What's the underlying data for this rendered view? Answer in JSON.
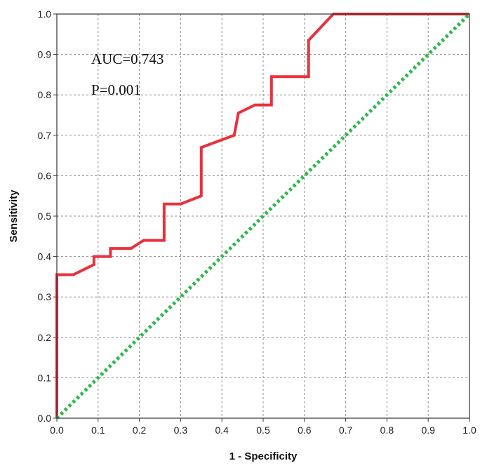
{
  "chart_data": {
    "type": "line",
    "title": "",
    "xlabel": "1 - Specificity",
    "ylabel": "Sensitivity",
    "xlim": [
      0.0,
      1.0
    ],
    "ylim": [
      0.0,
      1.0
    ],
    "grid": true,
    "x_ticks": [
      "0.0",
      "0.1",
      "0.2",
      "0.3",
      "0.4",
      "0.5",
      "0.6",
      "0.7",
      "0.8",
      "0.9",
      "1.0"
    ],
    "y_ticks": [
      "0.0",
      "0.1",
      "0.2",
      "0.3",
      "0.4",
      "0.5",
      "0.6",
      "0.7",
      "0.8",
      "0.9",
      "1.0"
    ],
    "annotations": [
      "AUC=0.743",
      "P=0.001"
    ],
    "series": [
      {
        "color": "#e8323c",
        "style": "solid",
        "x": [
          0.0,
          0.0,
          0.04,
          0.08,
          0.09,
          0.09,
          0.13,
          0.13,
          0.18,
          0.21,
          0.26,
          0.26,
          0.3,
          0.35,
          0.35,
          0.43,
          0.44,
          0.48,
          0.52,
          0.52,
          0.61,
          0.61,
          0.67,
          1.0
        ],
        "y": [
          0.0,
          0.355,
          0.355,
          0.375,
          0.38,
          0.4,
          0.4,
          0.42,
          0.42,
          0.44,
          0.44,
          0.53,
          0.53,
          0.55,
          0.67,
          0.7,
          0.755,
          0.775,
          0.775,
          0.845,
          0.845,
          0.935,
          1.0,
          1.0
        ]
      },
      {
        "color": "#2db84a",
        "style": "dotted",
        "x": [
          0.0,
          1.0
        ],
        "y": [
          0.0,
          1.0
        ]
      }
    ]
  }
}
